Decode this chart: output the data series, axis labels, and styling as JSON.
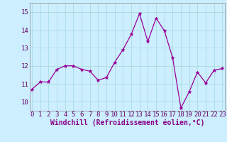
{
  "x": [
    0,
    1,
    2,
    3,
    4,
    5,
    6,
    7,
    8,
    9,
    10,
    11,
    12,
    13,
    14,
    15,
    16,
    17,
    18,
    19,
    20,
    21,
    22,
    23
  ],
  "y": [
    10.7,
    11.1,
    11.1,
    11.8,
    12.0,
    12.0,
    11.8,
    11.7,
    11.2,
    11.35,
    12.2,
    12.9,
    13.75,
    14.9,
    13.35,
    14.65,
    13.95,
    12.45,
    9.65,
    10.55,
    11.65,
    11.05,
    11.75,
    11.85
  ],
  "line_color": "#990099",
  "marker": "*",
  "marker_size": 3.5,
  "bg_color": "#cceeff",
  "grid_color": "#aadddd",
  "xlabel": "Windchill (Refroidissement éolien,°C)",
  "xlabel_color": "#880088",
  "ylim": [
    9.5,
    15.5
  ],
  "yticks": [
    10,
    11,
    12,
    13,
    14,
    15
  ],
  "xticks": [
    0,
    1,
    2,
    3,
    4,
    5,
    6,
    7,
    8,
    9,
    10,
    11,
    12,
    13,
    14,
    15,
    16,
    17,
    18,
    19,
    20,
    21,
    22,
    23
  ],
  "tick_label_size": 6.5,
  "xlabel_size": 7.0,
  "xlim_left": -0.3,
  "xlim_right": 23.3
}
